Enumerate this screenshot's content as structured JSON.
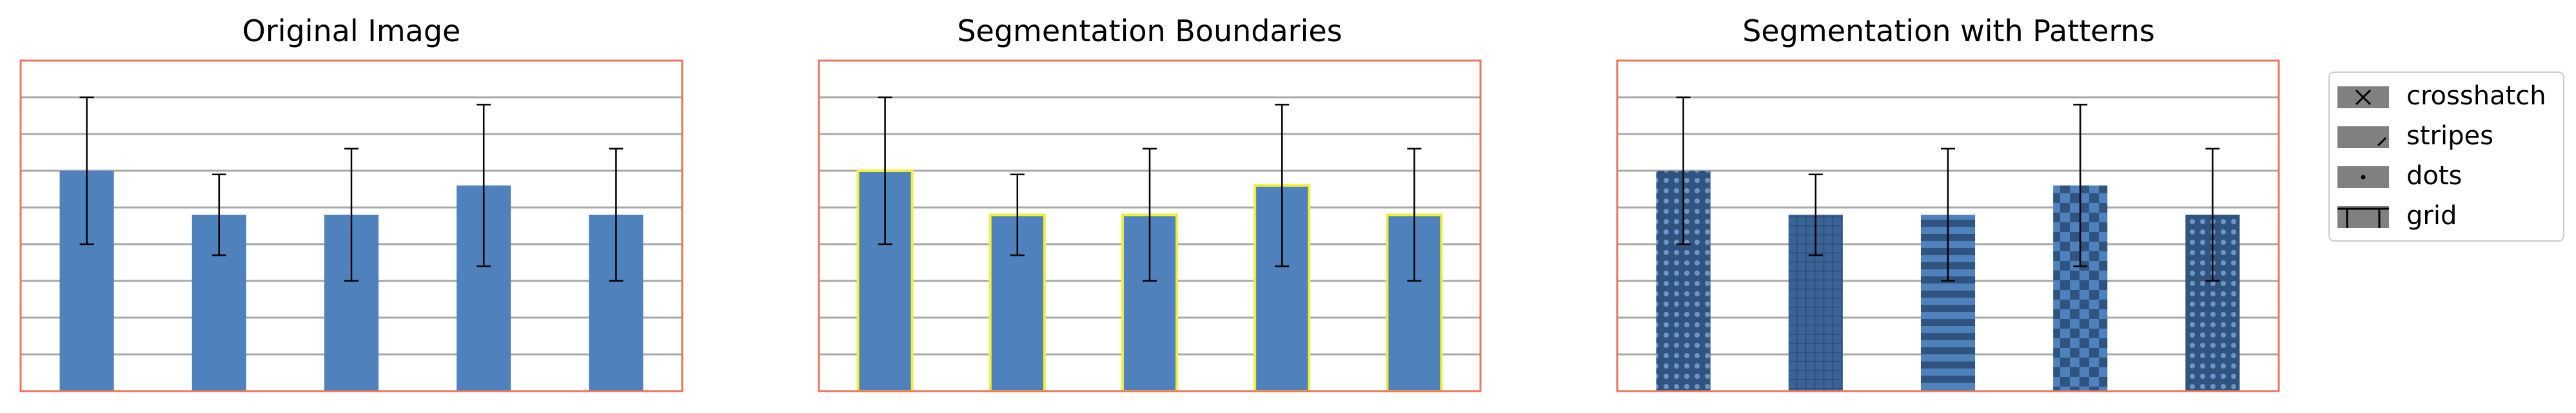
{
  "figure": {
    "legend": {
      "placement": "right",
      "entries": [
        {
          "label": "crosshatch",
          "icon": "crosshatch-pattern-icon"
        },
        {
          "label": "stripes",
          "icon": "stripes-pattern-icon"
        },
        {
          "label": "dots",
          "icon": "dots-pattern-icon"
        },
        {
          "label": "grid",
          "icon": "grid-pattern-icon"
        }
      ]
    },
    "colors": {
      "bar": "#4f81bd",
      "bar_dark": "#2f5480",
      "frame": "#e8755f",
      "grid": "#a8a8a8",
      "boundary": "#f0f03a",
      "error": "#000000"
    }
  },
  "chart_data": [
    {
      "type": "bar",
      "title": "Original Image",
      "categories": [
        "",
        "",
        "",
        "",
        ""
      ],
      "values": [
        6.0,
        4.8,
        4.8,
        5.6,
        4.8
      ],
      "errors": [
        2.0,
        1.1,
        1.8,
        2.2,
        1.8
      ],
      "ylim": [
        0,
        9
      ],
      "grid": true,
      "xlabel": "",
      "ylabel": "",
      "style": "plain"
    },
    {
      "type": "bar",
      "title": "Segmentation Boundaries",
      "categories": [
        "",
        "",
        "",
        "",
        ""
      ],
      "values": [
        6.0,
        4.8,
        4.8,
        5.6,
        4.8
      ],
      "errors": [
        2.0,
        1.1,
        1.8,
        2.2,
        1.8
      ],
      "ylim": [
        0,
        9
      ],
      "grid": true,
      "xlabel": "",
      "ylabel": "",
      "style": "boundary"
    },
    {
      "type": "bar",
      "title": "Segmentation with Patterns",
      "categories": [
        "",
        "",
        "",
        "",
        ""
      ],
      "values": [
        6.0,
        4.8,
        4.8,
        5.6,
        4.8
      ],
      "errors": [
        2.0,
        1.1,
        1.8,
        2.2,
        1.8
      ],
      "patterns": [
        "dots",
        "grid",
        "stripes",
        "crosshatch",
        "dots"
      ],
      "ylim": [
        0,
        9
      ],
      "grid": true,
      "xlabel": "",
      "ylabel": "",
      "style": "pattern"
    }
  ]
}
